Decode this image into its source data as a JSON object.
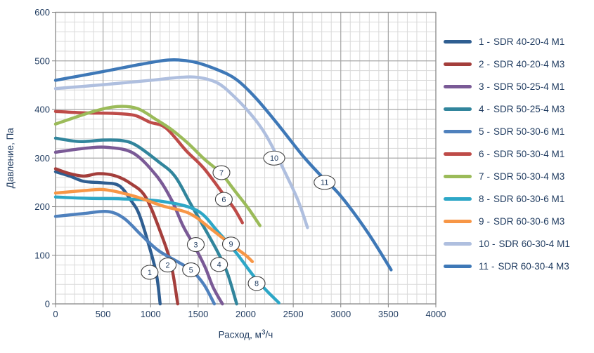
{
  "chart_data": {
    "type": "line",
    "title": "",
    "xlabel": "Расход, м³/ч",
    "ylabel": "Давление, Па",
    "xlim": [
      0,
      4000
    ],
    "ylim": [
      0,
      600
    ],
    "x_ticks": [
      0,
      500,
      1000,
      1500,
      2000,
      2500,
      3000,
      3500,
      4000
    ],
    "y_ticks": [
      0,
      100,
      200,
      300,
      400,
      500,
      600
    ],
    "x_minor_step": 100,
    "y_minor_step": 20,
    "grid": "major-and-minor",
    "legend_position": "right-outside",
    "series": [
      {
        "num": 1,
        "name": "SDR 40-20-4 M1",
        "color": "#2F5E91",
        "label_xy": [
          990,
          65
        ],
        "points": [
          [
            0,
            272
          ],
          [
            150,
            263
          ],
          [
            300,
            252
          ],
          [
            500,
            249
          ],
          [
            670,
            243
          ],
          [
            800,
            211
          ],
          [
            880,
            184
          ],
          [
            980,
            122
          ],
          [
            1060,
            62
          ],
          [
            1100,
            0
          ]
        ]
      },
      {
        "num": 2,
        "name": "SDR 40-20-4 M3",
        "color": "#A43E3B",
        "label_xy": [
          1180,
          80
        ],
        "points": [
          [
            0,
            278
          ],
          [
            150,
            268
          ],
          [
            300,
            263
          ],
          [
            450,
            268
          ],
          [
            620,
            264
          ],
          [
            780,
            249
          ],
          [
            950,
            219
          ],
          [
            1120,
            139
          ],
          [
            1220,
            77
          ],
          [
            1285,
            0
          ]
        ]
      },
      {
        "num": 3,
        "name": "SDR 50-25-4 M1",
        "color": "#7A5A96",
        "label_xy": [
          1475,
          122
        ],
        "points": [
          [
            0,
            312
          ],
          [
            300,
            320
          ],
          [
            550,
            322
          ],
          [
            820,
            310
          ],
          [
            1060,
            264
          ],
          [
            1220,
            214
          ],
          [
            1340,
            161
          ],
          [
            1460,
            119
          ],
          [
            1570,
            77
          ],
          [
            1660,
            33
          ],
          [
            1755,
            0
          ]
        ]
      },
      {
        "num": 4,
        "name": "SDR 50-25-4 M3",
        "color": "#31859C",
        "label_xy": [
          1720,
          81
        ],
        "points": [
          [
            0,
            341
          ],
          [
            250,
            334
          ],
          [
            500,
            337
          ],
          [
            700,
            336
          ],
          [
            850,
            326
          ],
          [
            1080,
            293
          ],
          [
            1255,
            263
          ],
          [
            1420,
            206
          ],
          [
            1590,
            148
          ],
          [
            1710,
            105
          ],
          [
            1810,
            62
          ],
          [
            1905,
            0
          ]
        ]
      },
      {
        "num": 5,
        "name": "SDR 50-30-6 M1",
        "color": "#4F81BD",
        "label_xy": [
          1425,
          70
        ],
        "points": [
          [
            0,
            180
          ],
          [
            300,
            186
          ],
          [
            550,
            190
          ],
          [
            720,
            176
          ],
          [
            900,
            142
          ],
          [
            1080,
            110
          ],
          [
            1290,
            86
          ],
          [
            1430,
            69
          ],
          [
            1560,
            40
          ],
          [
            1670,
            0
          ]
        ]
      },
      {
        "num": 6,
        "name": "SDR 50-30-4 M1",
        "color": "#BE4B48",
        "label_xy": [
          1770,
          215
        ],
        "points": [
          [
            0,
            396
          ],
          [
            300,
            393
          ],
          [
            600,
            392
          ],
          [
            830,
            388
          ],
          [
            990,
            374
          ],
          [
            1160,
            362
          ],
          [
            1380,
            314
          ],
          [
            1560,
            279
          ],
          [
            1780,
            222
          ],
          [
            1880,
            196
          ],
          [
            1965,
            167
          ]
        ]
      },
      {
        "num": 7,
        "name": "SDR 50-30-4 M3",
        "color": "#9BBB59",
        "label_xy": [
          1745,
          270
        ],
        "points": [
          [
            0,
            370
          ],
          [
            400,
            396
          ],
          [
            650,
            406
          ],
          [
            860,
            402
          ],
          [
            1060,
            379
          ],
          [
            1210,
            360
          ],
          [
            1390,
            331
          ],
          [
            1570,
            297
          ],
          [
            1740,
            269
          ],
          [
            1880,
            234
          ],
          [
            2030,
            196
          ],
          [
            2150,
            161
          ]
        ]
      },
      {
        "num": 8,
        "name": "SDR 60-30-6 M1",
        "color": "#2DA7C7",
        "label_xy": [
          2115,
          42
        ],
        "points": [
          [
            0,
            220
          ],
          [
            350,
            217
          ],
          [
            700,
            216
          ],
          [
            1120,
            211
          ],
          [
            1490,
            192
          ],
          [
            1710,
            148
          ],
          [
            1900,
            105
          ],
          [
            2130,
            46
          ],
          [
            2350,
            2
          ]
        ]
      },
      {
        "num": 9,
        "name": "SDR 60-30-6 M3",
        "color": "#F79646",
        "label_xy": [
          1845,
          123
        ],
        "points": [
          [
            0,
            228
          ],
          [
            300,
            233
          ],
          [
            520,
            235
          ],
          [
            820,
            222
          ],
          [
            1120,
            202
          ],
          [
            1410,
            186
          ],
          [
            1630,
            155
          ],
          [
            1860,
            120
          ],
          [
            2000,
            100
          ],
          [
            2070,
            87
          ]
        ]
      },
      {
        "num": 10,
        "name": "SDR 60-30-4 M1",
        "color": "#AFBFDF",
        "label_xy": [
          2300,
          300
        ],
        "points": [
          [
            0,
            443
          ],
          [
            500,
            451
          ],
          [
            1000,
            460
          ],
          [
            1300,
            466
          ],
          [
            1500,
            466
          ],
          [
            1700,
            455
          ],
          [
            1860,
            430
          ],
          [
            2050,
            391
          ],
          [
            2220,
            345
          ],
          [
            2420,
            268
          ],
          [
            2550,
            213
          ],
          [
            2650,
            157
          ]
        ]
      },
      {
        "num": 11,
        "name": "SDR 60-30-4 M3",
        "color": "#3E78B7",
        "label_xy": [
          2830,
          250
        ],
        "points": [
          [
            0,
            460
          ],
          [
            500,
            478
          ],
          [
            900,
            493
          ],
          [
            1200,
            502
          ],
          [
            1450,
            498
          ],
          [
            1700,
            482
          ],
          [
            1900,
            462
          ],
          [
            2100,
            425
          ],
          [
            2320,
            374
          ],
          [
            2600,
            305
          ],
          [
            2800,
            262
          ],
          [
            3000,
            222
          ],
          [
            3280,
            148
          ],
          [
            3530,
            70
          ]
        ]
      }
    ]
  },
  "legend": {
    "separator": "-"
  }
}
